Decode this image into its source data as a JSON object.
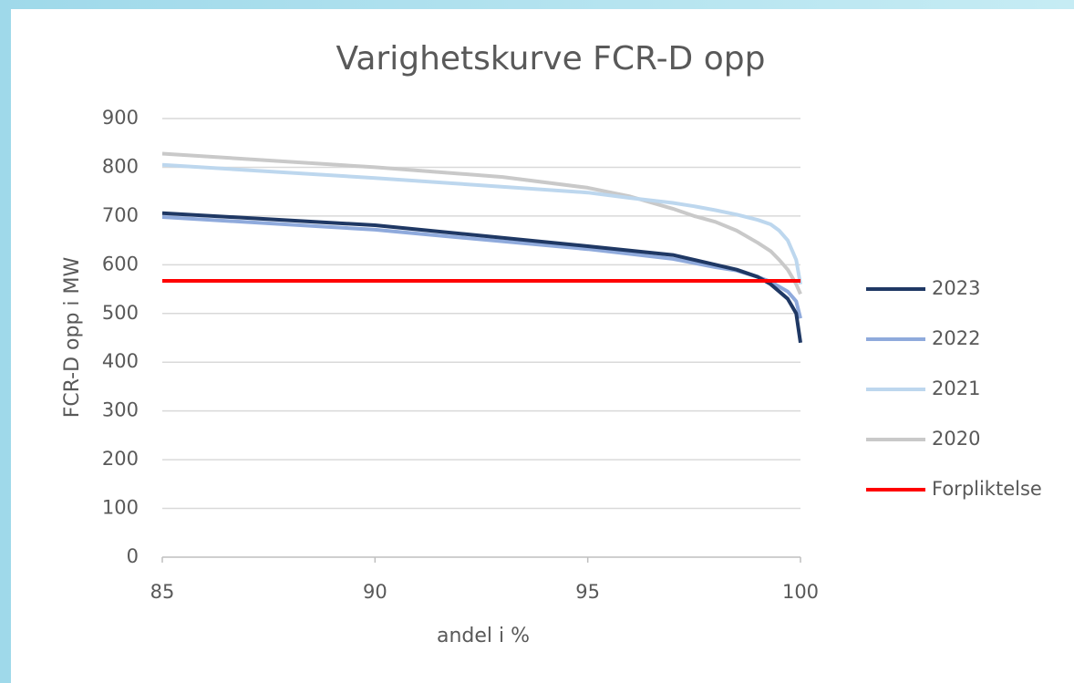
{
  "chart_data": {
    "type": "line",
    "title": "Varighetskurve FCR-D opp",
    "x_label": "andel i %",
    "y_label": "FCR-D opp i MW",
    "xlim": [
      85,
      100
    ],
    "xticks": [
      85,
      90,
      95,
      100
    ],
    "ylim": [
      0,
      900
    ],
    "yticks": [
      0,
      100,
      200,
      300,
      400,
      500,
      600,
      700,
      800,
      900
    ],
    "grid": true,
    "legend": "right",
    "series": [
      {
        "name": "2023",
        "color": "#1f3864",
        "x": [
          85,
          90,
          95,
          97,
          98,
          98.5,
          99,
          99.3,
          99.5,
          99.7,
          99.8,
          99.9,
          100
        ],
        "values": [
          706,
          681,
          638,
          620,
          600,
          590,
          575,
          560,
          545,
          530,
          515,
          500,
          440
        ]
      },
      {
        "name": "2022",
        "color": "#8faadc",
        "x": [
          85,
          90,
          95,
          97,
          98,
          98.5,
          99,
          99.3,
          99.5,
          99.7,
          99.8,
          99.9,
          100
        ],
        "values": [
          698,
          672,
          632,
          612,
          595,
          588,
          575,
          565,
          555,
          545,
          535,
          525,
          490
        ]
      },
      {
        "name": "2021",
        "color": "#bdd7ee",
        "x": [
          85,
          90,
          95,
          96,
          97,
          97.5,
          98,
          98.5,
          99,
          99.3,
          99.5,
          99.7,
          99.8,
          99.9,
          100
        ],
        "values": [
          805,
          778,
          748,
          737,
          727,
          720,
          712,
          703,
          692,
          683,
          670,
          650,
          630,
          610,
          560
        ]
      },
      {
        "name": "2020",
        "color": "#c9c9c9",
        "x": [
          85,
          90,
          93,
          95,
          96,
          97,
          97.5,
          98,
          98.5,
          99,
          99.3,
          99.5,
          99.7,
          99.8,
          99.9,
          100
        ],
        "values": [
          828,
          800,
          780,
          758,
          740,
          715,
          700,
          688,
          670,
          645,
          628,
          610,
          590,
          575,
          560,
          540
        ]
      },
      {
        "name": "Forpliktelse",
        "color": "#ff0000",
        "x": [
          85,
          100
        ],
        "values": [
          567,
          567
        ]
      }
    ]
  }
}
